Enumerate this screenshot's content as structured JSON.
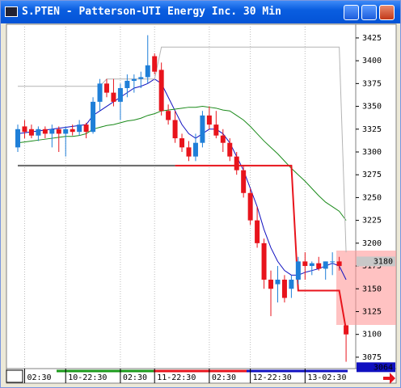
{
  "chart_data": {
    "type": "candlestick",
    "title": "S.PTEN - Patterson-UTI Energy Inc. 30 Min",
    "open": [
      3305,
      3328,
      3325,
      3318,
      3325,
      3320,
      3325,
      3320,
      3325,
      3322,
      3330,
      3322,
      3355,
      3375,
      3365,
      3355,
      3370,
      3378,
      3380,
      3382,
      3405,
      3390,
      3345,
      3335,
      3315,
      3305,
      3295,
      3310,
      3340,
      3330,
      3318,
      3310,
      3295,
      3280,
      3255,
      3225,
      3200,
      3160,
      3155,
      3160,
      3150,
      3160,
      3180,
      3175,
      3178,
      3172,
      3180,
      3180,
      3110
    ],
    "high": [
      3330,
      3335,
      3330,
      3328,
      3328,
      3330,
      3328,
      3328,
      3330,
      3335,
      3332,
      3360,
      3380,
      3380,
      3380,
      3375,
      3385,
      3385,
      3388,
      3428,
      3408,
      3398,
      3352,
      3345,
      3320,
      3312,
      3320,
      3345,
      3350,
      3345,
      3325,
      3315,
      3300,
      3285,
      3260,
      3240,
      3205,
      3170,
      3175,
      3165,
      3165,
      3185,
      3190,
      3180,
      3185,
      3180,
      3190,
      3185,
      3110
    ],
    "low": [
      3300,
      3315,
      3315,
      3312,
      3315,
      3305,
      3300,
      3295,
      3318,
      3318,
      3315,
      3320,
      3345,
      3360,
      3350,
      3335,
      3360,
      3365,
      3370,
      3375,
      3385,
      3340,
      3330,
      3310,
      3300,
      3290,
      3290,
      3305,
      3325,
      3315,
      3300,
      3290,
      3275,
      3250,
      3220,
      3195,
      3150,
      3120,
      3135,
      3135,
      3140,
      3155,
      3160,
      3165,
      3170,
      3160,
      3165,
      3170,
      3070
    ],
    "close": [
      3325,
      3322,
      3318,
      3325,
      3320,
      3325,
      3320,
      3325,
      3322,
      3330,
      3322,
      3355,
      3375,
      3365,
      3355,
      3370,
      3378,
      3380,
      3382,
      3395,
      3388,
      3345,
      3335,
      3315,
      3305,
      3295,
      3310,
      3340,
      3330,
      3318,
      3310,
      3295,
      3280,
      3255,
      3225,
      3200,
      3160,
      3150,
      3160,
      3140,
      3160,
      3180,
      3175,
      3178,
      3172,
      3180,
      3180,
      3175,
      3100
    ],
    "up_color": "#1f7fd8",
    "down_color": "#e8141c",
    "lines": [
      {
        "color": "#1010c0",
        "values": [
          3320,
          3321,
          3322,
          3323,
          3324,
          3325,
          3326,
          3327,
          3328,
          3329,
          3330,
          3340,
          3345,
          3350,
          3355,
          3360,
          3365,
          3370,
          3372,
          3375,
          3380,
          3375,
          3360,
          3345,
          3330,
          3320,
          3315,
          3320,
          3325,
          3325,
          3320,
          3310,
          3295,
          3280,
          3260,
          3240,
          3215,
          3195,
          3180,
          3170,
          3165,
          3165,
          3168,
          3170,
          3172,
          3175,
          3178,
          3175,
          3160
        ]
      },
      {
        "color": "#1a8a1a",
        "values": [
          3310,
          3311,
          3312,
          3313,
          3314,
          3315,
          3316,
          3317,
          3317,
          3318,
          3320,
          3325,
          3327,
          3329,
          3330,
          3332,
          3334,
          3335,
          3337,
          3340,
          3342,
          3345,
          3346,
          3347,
          3348,
          3349,
          3349,
          3350,
          3349,
          3348,
          3346,
          3345,
          3340,
          3335,
          3328,
          3320,
          3312,
          3305,
          3298,
          3290,
          3282,
          3275,
          3268,
          3260,
          3252,
          3245,
          3240,
          3235,
          3225
        ]
      },
      {
        "color": "#b4b4b4",
        "values": [
          3372,
          3372,
          3372,
          3372,
          3372,
          3372,
          3372,
          3372,
          3372,
          3372,
          3372,
          3372,
          3372,
          3380,
          3380,
          3380,
          3380,
          3380,
          3380,
          3380,
          3380,
          3415,
          3415,
          3415,
          3415,
          3415,
          3415,
          3415,
          3415,
          3415,
          3415,
          3415,
          3415,
          3415,
          3415,
          3415,
          3415,
          3415,
          3415,
          3415,
          3415,
          3415,
          3415,
          3415,
          3415,
          3415,
          3415,
          3415,
          3190
        ]
      },
      {
        "color": "#666666",
        "values": [
          3285,
          3285,
          3285,
          3285,
          3285,
          3285,
          3285,
          3285,
          3285,
          3285,
          3285,
          3285,
          3285,
          3285,
          3285,
          3285,
          3285,
          3285,
          3285,
          3285,
          3285,
          3285,
          3285,
          3285,
          null,
          null,
          null,
          null,
          null,
          null,
          null,
          null,
          null,
          null,
          null,
          null,
          null,
          null,
          null,
          null,
          null,
          null,
          null,
          null,
          null,
          null,
          null,
          null,
          null
        ]
      },
      {
        "color": "#e8141c",
        "values": [
          null,
          null,
          null,
          null,
          null,
          null,
          null,
          null,
          null,
          null,
          null,
          null,
          null,
          null,
          null,
          null,
          null,
          null,
          null,
          null,
          null,
          null,
          null,
          3285,
          3285,
          3285,
          3285,
          3285,
          3285,
          3285,
          3285,
          3285,
          3285,
          3285,
          3285,
          3285,
          3285,
          3285,
          3285,
          3285,
          3285,
          3148,
          3148,
          3148,
          3148,
          3148,
          3148,
          3148,
          3105
        ]
      }
    ],
    "ylim": [
      3062.5,
      3440
    ],
    "yticks": [
      3075,
      3100,
      3125,
      3150,
      3175,
      3200,
      3225,
      3250,
      3275,
      3300,
      3325,
      3350,
      3375,
      3400,
      3425
    ],
    "xticks": [
      {
        "value": 1,
        "label": "02:30"
      },
      {
        "value": 7,
        "label": "10-22:30"
      },
      {
        "value": 15,
        "label": "02:30"
      },
      {
        "value": 20,
        "label": "11-22:30"
      },
      {
        "value": 28,
        "label": "02:30"
      },
      {
        "value": 34,
        "label": "12-22:30"
      },
      {
        "value": 42,
        "label": "13-02:30"
      }
    ],
    "price_markers": [
      {
        "value": 3180,
        "label": "3180",
        "color": "#c8c8c8"
      },
      {
        "value": 3064,
        "label": "3064",
        "color": "#1010c0"
      }
    ],
    "grid": true
  }
}
